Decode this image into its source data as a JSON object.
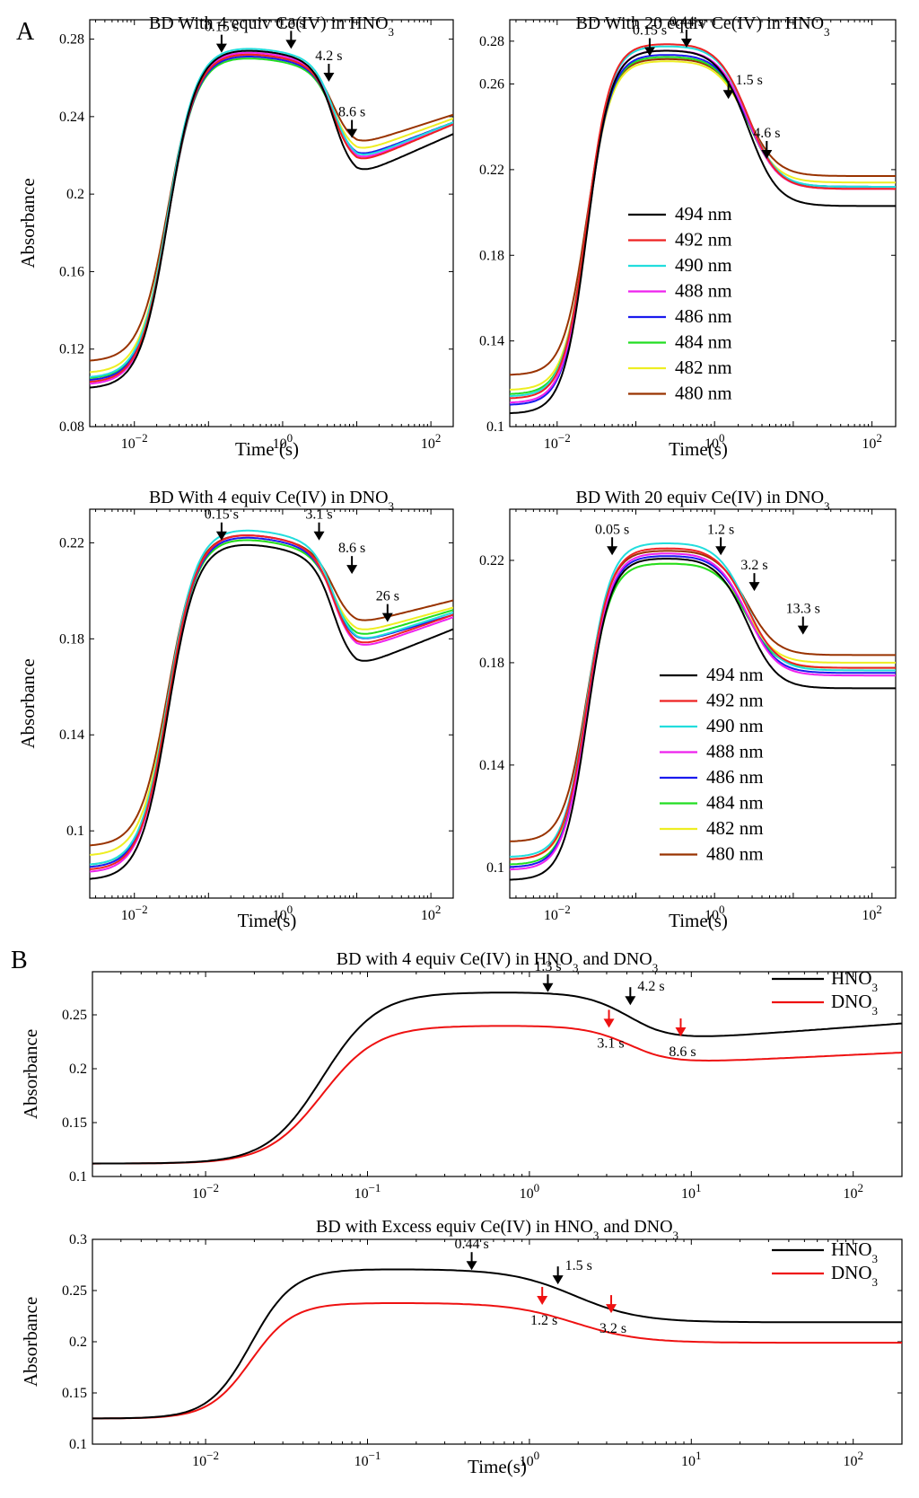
{
  "colors": {
    "494 nm": "#000000",
    "492 nm": "#ee2222",
    "490 nm": "#22dddd",
    "488 nm": "#ee22ee",
    "486 nm": "#1a1aee",
    "484 nm": "#22dd22",
    "482 nm": "#eeee22",
    "480 nm": "#993300",
    "HNO3": "#000000",
    "DNO3": "#ee1111"
  },
  "chart_data": [
    {
      "id": "a1",
      "type": "line",
      "panel_label": "A",
      "title_parts": [
        "BD With 4 equiv Ce(IV) in HNO",
        "3",
        ""
      ],
      "xlabel": "Time (s)",
      "ylabel": "Absorbance",
      "xscale": "log",
      "xlim": [
        0.0025,
        200
      ],
      "ylim": [
        0.08,
        0.29
      ],
      "xticks": [
        -2,
        0,
        2
      ],
      "yticks": [
        "0.08",
        "0.12",
        "0.16",
        "0.2",
        "0.24",
        "0.28"
      ],
      "legend": null,
      "series": [
        {
          "name": "494 nm",
          "p": [
            0.0995,
            0.275,
            0.209,
            0.231
          ]
        },
        {
          "name": "492 nm",
          "p": [
            0.1025,
            0.273,
            0.215,
            0.236
          ]
        },
        {
          "name": "490 nm",
          "p": [
            0.105,
            0.276,
            0.217,
            0.237
          ]
        },
        {
          "name": "488 nm",
          "p": [
            0.1015,
            0.274,
            0.216,
            0.236
          ]
        },
        {
          "name": "486 nm",
          "p": [
            0.1035,
            0.272,
            0.218,
            0.237
          ]
        },
        {
          "name": "484 nm",
          "p": [
            0.1045,
            0.271,
            0.218,
            0.237
          ]
        },
        {
          "name": "482 nm",
          "p": [
            0.1075,
            0.272,
            0.221,
            0.239
          ]
        },
        {
          "name": "480 nm",
          "p": [
            0.1135,
            0.273,
            0.225,
            0.241
          ]
        }
      ],
      "annotations": [
        {
          "text": "0.15 s",
          "x": 0.15,
          "y": 0.273,
          "color": "black",
          "side": "top"
        },
        {
          "text": "1.3 s",
          "x": 1.3,
          "y": 0.275,
          "color": "black",
          "side": "top"
        },
        {
          "text": "4.2 s",
          "x": 4.2,
          "y": 0.258,
          "color": "black",
          "side": "top"
        },
        {
          "text": "8.6 s",
          "x": 8.6,
          "y": 0.229,
          "color": "black",
          "side": "top"
        }
      ]
    },
    {
      "id": "a2",
      "type": "line",
      "title_parts": [
        "BD With 20 equiv Ce(IV) in HNO",
        "3",
        ""
      ],
      "xlabel": "Time(s)",
      "ylabel": "",
      "xscale": "log",
      "xlim": [
        0.0025,
        200
      ],
      "ylim": [
        0.1,
        0.29
      ],
      "xticks": [
        -2,
        0,
        2
      ],
      "yticks": [
        "0.1",
        "0.14",
        "0.18",
        "0.22",
        "0.26",
        "0.28"
      ],
      "legend": {
        "placement": "center",
        "items": [
          "494 nm",
          "492 nm",
          "490 nm",
          "488 nm",
          "486 nm",
          "484 nm",
          "482 nm",
          "480 nm"
        ]
      },
      "series": [
        {
          "name": "494 nm",
          "p": [
            0.106,
            0.276,
            0.203,
            0.203
          ]
        },
        {
          "name": "492 nm",
          "p": [
            0.113,
            0.279,
            0.211,
            0.211
          ]
        },
        {
          "name": "490 nm",
          "p": [
            0.114,
            0.278,
            0.212,
            0.212
          ]
        },
        {
          "name": "488 nm",
          "p": [
            0.111,
            0.276,
            0.211,
            0.211
          ]
        },
        {
          "name": "486 nm",
          "p": [
            0.11,
            0.274,
            0.212,
            0.212
          ]
        },
        {
          "name": "484 nm",
          "p": [
            0.115,
            0.273,
            0.212,
            0.212
          ]
        },
        {
          "name": "482 nm",
          "p": [
            0.117,
            0.271,
            0.214,
            0.214
          ]
        },
        {
          "name": "480 nm",
          "p": [
            0.124,
            0.272,
            0.217,
            0.217
          ]
        }
      ],
      "annotations": [
        {
          "text": "0.15 s",
          "x": 0.15,
          "y": 0.273,
          "color": "black",
          "side": "top"
        },
        {
          "text": "0.44 s",
          "x": 0.44,
          "y": 0.277,
          "color": "black",
          "side": "top"
        },
        {
          "text": "1.5 s",
          "x": 1.5,
          "y": 0.253,
          "color": "black",
          "side": "right"
        },
        {
          "text": "4.6 s",
          "x": 4.6,
          "y": 0.225,
          "color": "black",
          "side": "top"
        }
      ]
    },
    {
      "id": "a3",
      "type": "line",
      "title_parts": [
        "BD With 4 equiv Ce(IV) in DNO",
        "3",
        ""
      ],
      "xlabel": "Time(s)",
      "ylabel": "Absorbance",
      "xscale": "log",
      "xlim": [
        0.0025,
        200
      ],
      "ylim": [
        0.072,
        0.234
      ],
      "xticks": [
        -2,
        0,
        2
      ],
      "yticks": [
        "0.1",
        "0.14",
        "0.18",
        "0.22"
      ],
      "legend": null,
      "series": [
        {
          "name": "494 nm",
          "p": [
            0.0795,
            0.22,
            0.168,
            0.184
          ]
        },
        {
          "name": "492 nm",
          "p": [
            0.0835,
            0.224,
            0.176,
            0.19
          ]
        },
        {
          "name": "490 nm",
          "p": [
            0.0855,
            0.226,
            0.178,
            0.191
          ]
        },
        {
          "name": "488 nm",
          "p": [
            0.0825,
            0.224,
            0.175,
            0.189
          ]
        },
        {
          "name": "486 nm",
          "p": [
            0.0845,
            0.223,
            0.178,
            0.19
          ]
        },
        {
          "name": "484 nm",
          "p": [
            0.0855,
            0.222,
            0.18,
            0.192
          ]
        },
        {
          "name": "482 nm",
          "p": [
            0.0895,
            0.222,
            0.182,
            0.193
          ]
        },
        {
          "name": "480 nm",
          "p": [
            0.0935,
            0.224,
            0.186,
            0.196
          ]
        }
      ],
      "annotations": [
        {
          "text": "0.15 s",
          "x": 0.15,
          "y": 0.221,
          "color": "black",
          "side": "top"
        },
        {
          "text": "3.1 s",
          "x": 3.1,
          "y": 0.221,
          "color": "black",
          "side": "top"
        },
        {
          "text": "8.6 s",
          "x": 8.6,
          "y": 0.207,
          "color": "black",
          "side": "top"
        },
        {
          "text": "26 s",
          "x": 26,
          "y": 0.187,
          "color": "black",
          "side": "top"
        }
      ]
    },
    {
      "id": "a4",
      "type": "line",
      "title_parts": [
        "BD With 20 equiv Ce(IV) in DNO",
        "3",
        ""
      ],
      "xlabel": "Time(s)",
      "ylabel": "",
      "xscale": "log",
      "xlim": [
        0.0025,
        200
      ],
      "ylim": [
        0.088,
        0.24
      ],
      "xticks": [
        -2,
        0,
        2
      ],
      "yticks": [
        "0.1",
        "0.14",
        "0.18",
        "0.22"
      ],
      "legend": {
        "placement": "bottom-right",
        "items": [
          "494 nm",
          "492 nm",
          "490 nm",
          "488 nm",
          "486 nm",
          "484 nm",
          "482 nm",
          "480 nm"
        ]
      },
      "series": [
        {
          "name": "494 nm",
          "p": [
            0.095,
            0.221,
            0.17,
            0.17
          ]
        },
        {
          "name": "492 nm",
          "p": [
            0.103,
            0.225,
            0.178,
            0.178
          ]
        },
        {
          "name": "490 nm",
          "p": [
            0.104,
            0.227,
            0.177,
            0.177
          ]
        },
        {
          "name": "488 nm",
          "p": [
            0.099,
            0.223,
            0.175,
            0.175
          ]
        },
        {
          "name": "486 nm",
          "p": [
            0.1,
            0.222,
            0.176,
            0.176
          ]
        },
        {
          "name": "484 nm",
          "p": [
            0.101,
            0.219,
            0.178,
            0.178
          ]
        },
        {
          "name": "482 nm",
          "p": [
            0.103,
            0.219,
            0.18,
            0.18
          ]
        },
        {
          "name": "480 nm",
          "p": [
            0.11,
            0.224,
            0.183,
            0.183
          ]
        }
      ],
      "annotations": [
        {
          "text": "0.05 s",
          "x": 0.05,
          "y": 0.222,
          "color": "black",
          "side": "top"
        },
        {
          "text": "1.2 s",
          "x": 1.2,
          "y": 0.222,
          "color": "black",
          "side": "top"
        },
        {
          "text": "3.2 s",
          "x": 3.2,
          "y": 0.208,
          "color": "black",
          "side": "top"
        },
        {
          "text": "13.3 s",
          "x": 13.3,
          "y": 0.191,
          "color": "black",
          "side": "top"
        }
      ]
    },
    {
      "id": "b1",
      "type": "line",
      "panel_label": "B",
      "title_parts": [
        "BD with 4 equiv Ce(IV) in HNO",
        "3",
        " and DNO",
        "3"
      ],
      "xlabel": "",
      "ylabel": "Absorbance",
      "xscale": "log",
      "xlim": [
        0.002,
        200
      ],
      "ylim": [
        0.1,
        0.29
      ],
      "xticks": [
        -2,
        -1,
        0,
        1,
        2
      ],
      "yticks": [
        "0.1",
        "0.15",
        "0.2",
        "0.25"
      ],
      "legend": {
        "placement": "top-right",
        "items": [
          "HNO3",
          "DNO3"
        ]
      },
      "series": [
        {
          "name": "HNO3",
          "p": [
            0.112,
            0.271,
            0.225,
            0.242
          ]
        },
        {
          "name": "DNO3",
          "p": [
            0.112,
            0.24,
            0.204,
            0.215
          ]
        }
      ],
      "annotations": [
        {
          "text": "1.3 s",
          "x": 1.3,
          "y": 0.271,
          "color": "black",
          "side": "top"
        },
        {
          "text": "4.2 s",
          "x": 4.2,
          "y": 0.259,
          "color": "black",
          "side": "right"
        },
        {
          "text": "3.1 s",
          "x": 3.1,
          "y": 0.238,
          "color": "red",
          "side": "bottom"
        },
        {
          "text": "8.6  s",
          "x": 8.6,
          "y": 0.23,
          "color": "red",
          "side": "bottom"
        }
      ]
    },
    {
      "id": "b2",
      "type": "line",
      "title_parts": [
        "BD with Excess equiv Ce(IV) in HNO",
        "3",
        " and DNO",
        "3"
      ],
      "xlabel": "Time(s)",
      "ylabel": "Absorbance",
      "xscale": "log",
      "xlim": [
        0.002,
        200
      ],
      "ylim": [
        0.1,
        0.3
      ],
      "xticks": [
        -2,
        -1,
        0,
        1,
        2
      ],
      "yticks": [
        "0.1",
        "0.15",
        "0.2",
        "0.25",
        "0.3"
      ],
      "legend": {
        "placement": "top-right",
        "items": [
          "HNO3",
          "DNO3"
        ]
      },
      "series": [
        {
          "name": "HNO3",
          "p": [
            0.125,
            0.271,
            0.219,
            0.219
          ]
        },
        {
          "name": "DNO3",
          "p": [
            0.125,
            0.238,
            0.199,
            0.199
          ]
        }
      ],
      "annotations": [
        {
          "text": "0.44 s",
          "x": 0.44,
          "y": 0.27,
          "color": "black",
          "side": "top"
        },
        {
          "text": "1.5 s",
          "x": 1.5,
          "y": 0.256,
          "color": "black",
          "side": "right"
        },
        {
          "text": "1.2 s",
          "x": 1.2,
          "y": 0.236,
          "color": "red",
          "side": "bottom"
        },
        {
          "text": "3.2 s",
          "x": 3.2,
          "y": 0.228,
          "color": "red",
          "side": "bottom"
        }
      ]
    }
  ]
}
